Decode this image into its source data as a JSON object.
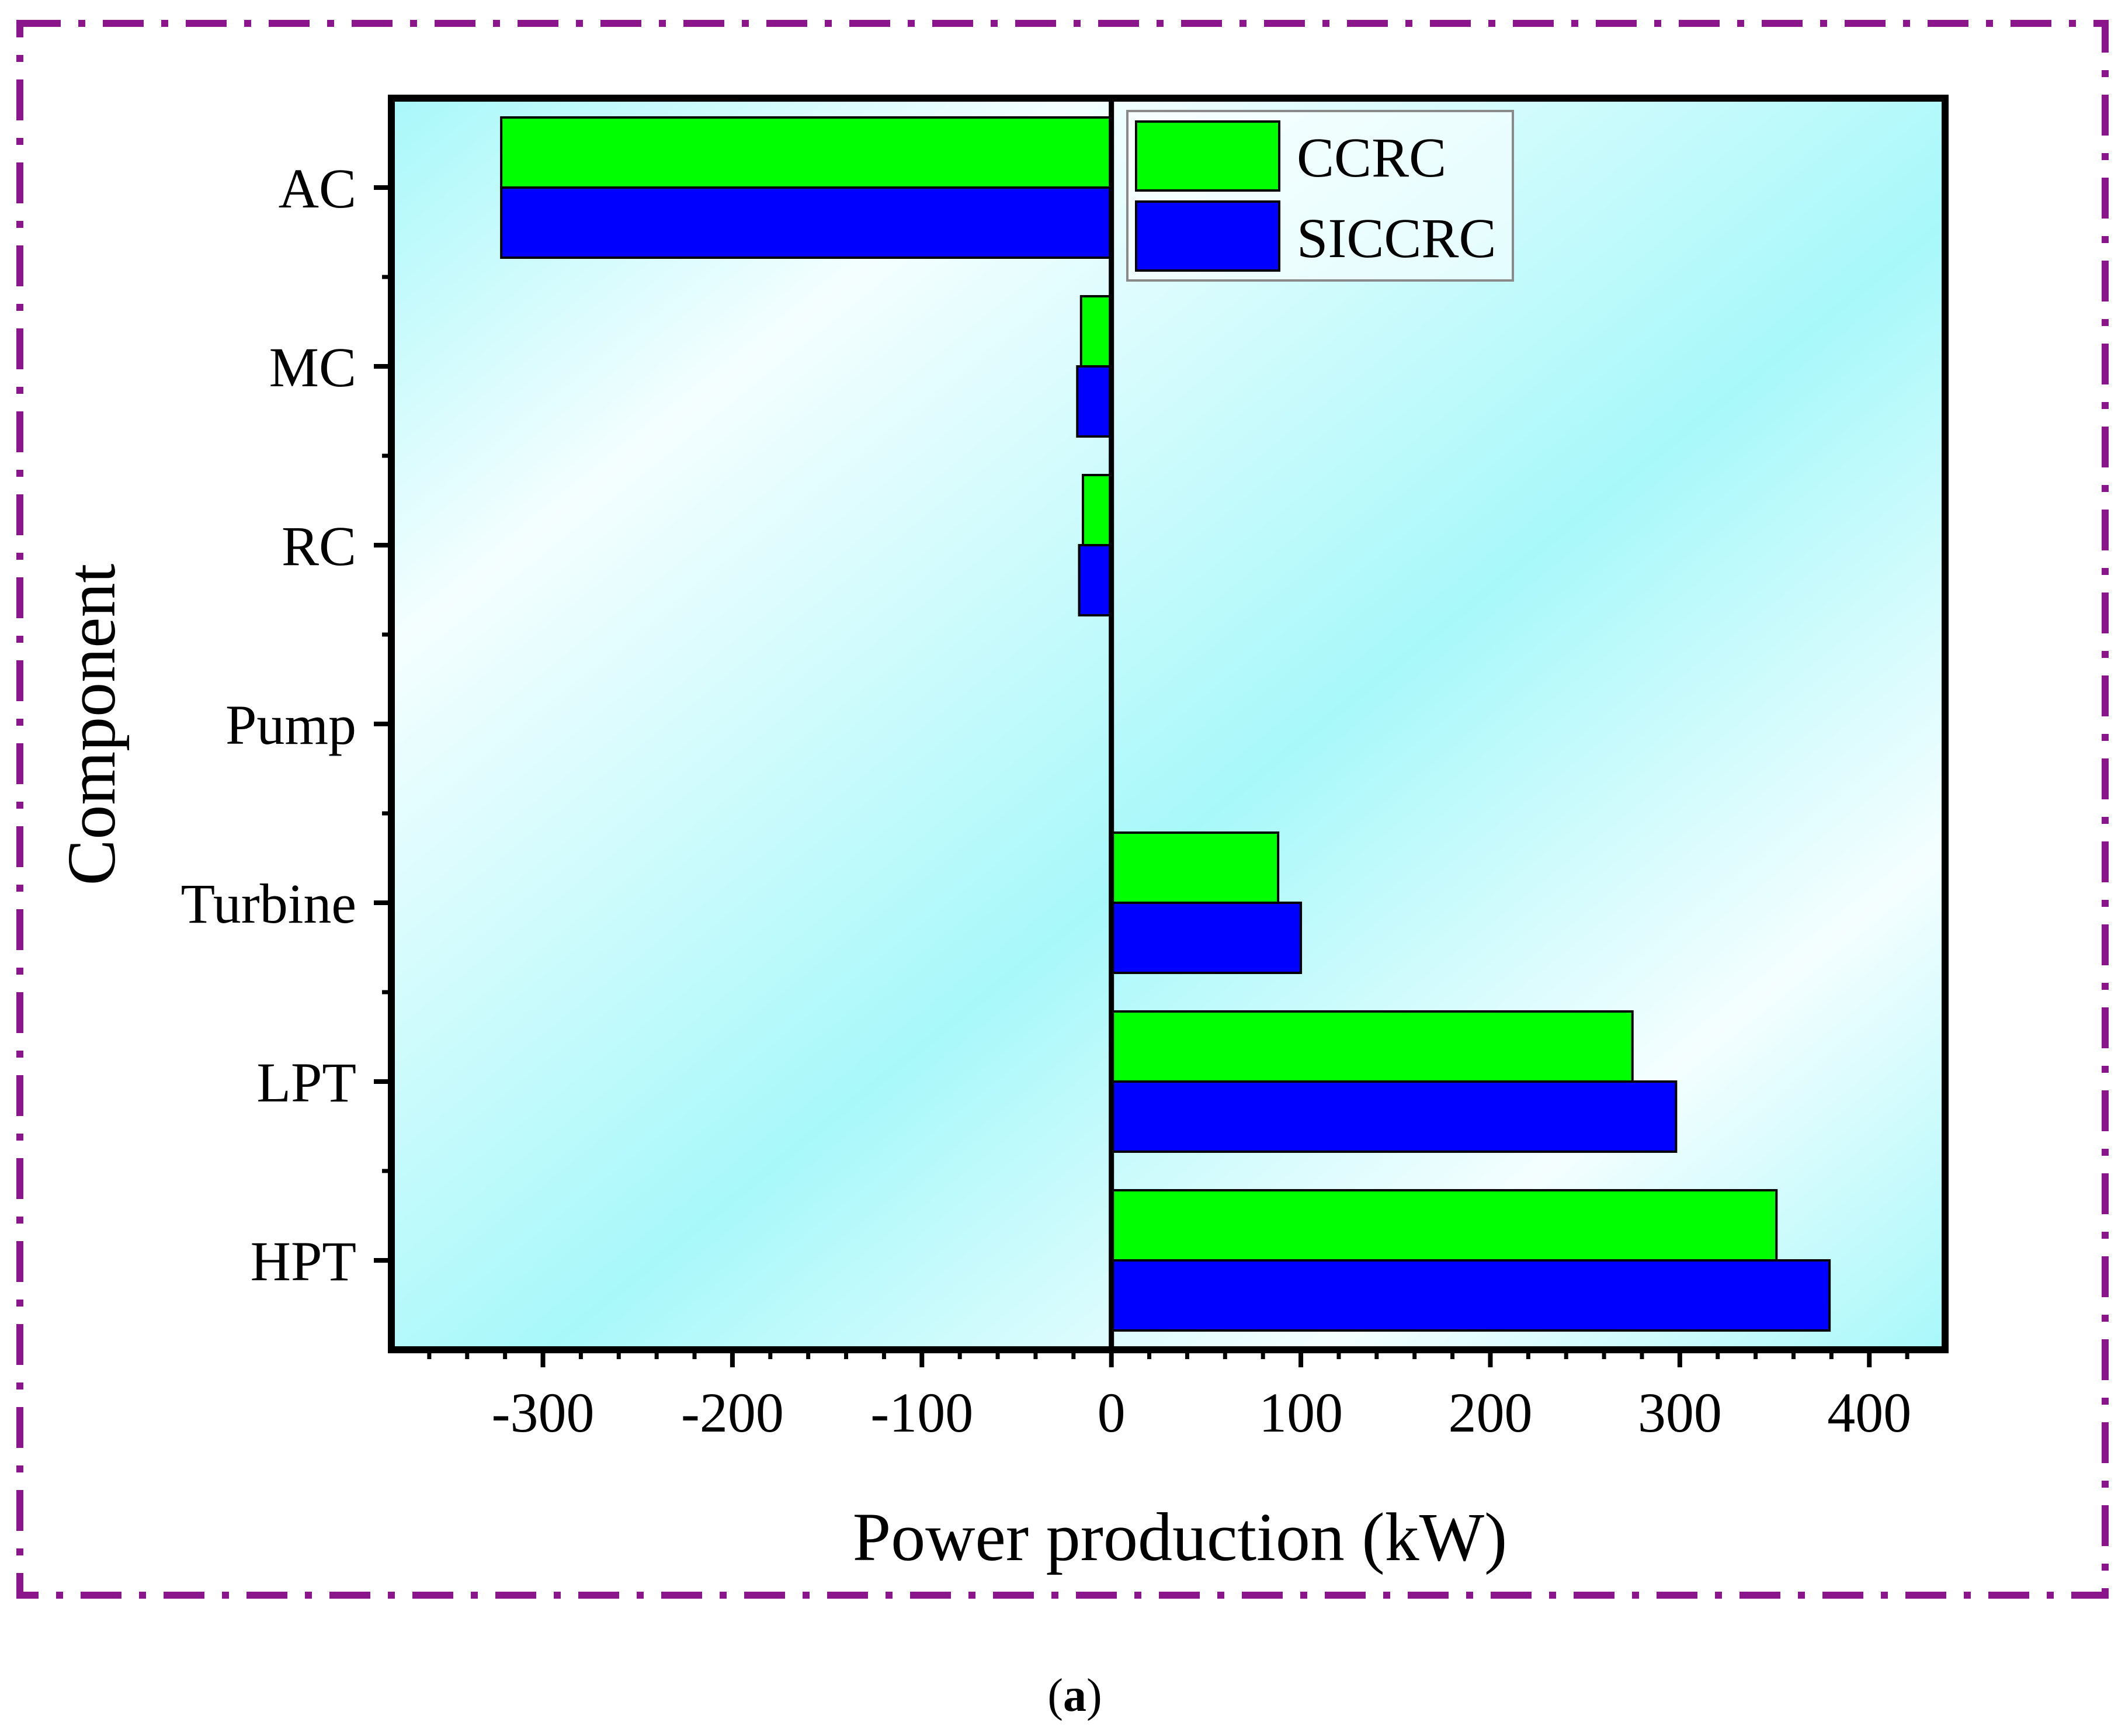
{
  "panel_label": {
    "open": "(",
    "letter": "a",
    "close": ")"
  },
  "frame_color": "#8B158B",
  "chart_data": {
    "type": "bar",
    "orientation": "horizontal",
    "categories": [
      "AC",
      "MC",
      "RC",
      "Pump",
      "Turbine",
      "LPT",
      "HPT"
    ],
    "series": [
      {
        "name": "CCRC",
        "color": "#00FF00",
        "values": [
          -322,
          -16,
          -15,
          0,
          88,
          275,
          351
        ]
      },
      {
        "name": "SICCRC",
        "color": "#0000FF",
        "values": [
          -322,
          -18,
          -17,
          0,
          100,
          298,
          379
        ]
      }
    ],
    "title": "",
    "xlabel": "Power production (kW)",
    "ylabel": "Component",
    "xlim": [
      -380,
      440
    ],
    "xticks": [
      -300,
      -200,
      -100,
      0,
      100,
      200,
      300,
      400
    ],
    "xtick_labels": [
      "-300",
      "-200",
      "-100",
      "0",
      "100",
      "200",
      "300",
      "400"
    ],
    "grid": false,
    "legend_position": "top-right",
    "background_gradient": [
      "#A8F8FA",
      "#F4FEFF"
    ]
  }
}
